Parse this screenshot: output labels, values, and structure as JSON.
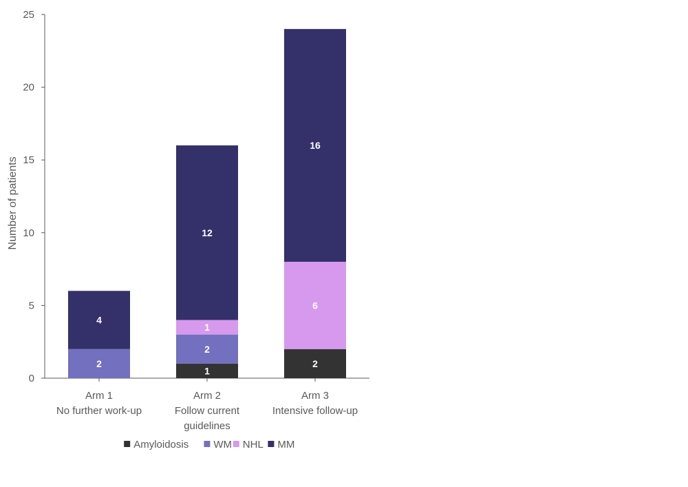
{
  "chart_data": {
    "type": "bar",
    "stacked": true,
    "categories": [
      [
        "Arm 1",
        "No further work-up"
      ],
      [
        "Arm 2",
        "Follow current",
        "guidelines"
      ],
      [
        "Arm 3",
        "Intensive follow-up"
      ]
    ],
    "series": [
      {
        "name": "Amyloidosis",
        "color": "#333333",
        "values": [
          0,
          1,
          2
        ]
      },
      {
        "name": "WM",
        "color": "#7370c0",
        "values": [
          2,
          2,
          0
        ]
      },
      {
        "name": "NHL",
        "color": "#d699ee",
        "values": [
          0,
          1,
          6
        ]
      },
      {
        "name": "MM",
        "color": "#33306a",
        "values": [
          4,
          12,
          16
        ]
      }
    ],
    "title": "",
    "xlabel": "",
    "ylabel": "Number of patients",
    "ylim": [
      0,
      25
    ],
    "yticks": [
      0,
      5,
      10,
      15,
      20,
      25
    ],
    "grid": false,
    "legend_position": "bottom"
  }
}
